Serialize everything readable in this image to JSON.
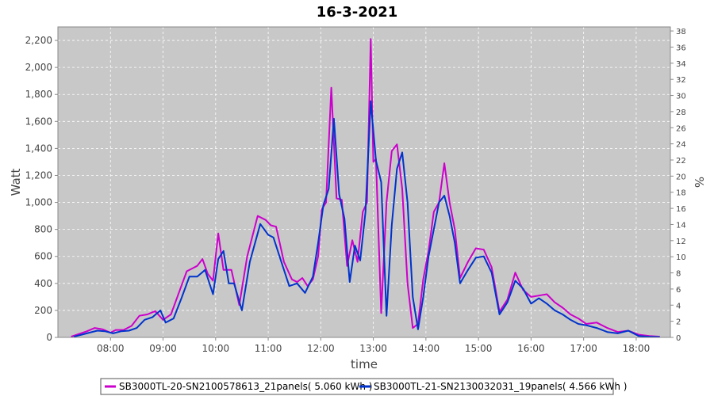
{
  "chart_data": {
    "type": "line",
    "title": "16-3-2021",
    "xlabel": "time",
    "ylabel": "Watt",
    "y2label": "%",
    "xlim": [
      7.0,
      18.65
    ],
    "ylim": [
      0,
      2300
    ],
    "y2lim": [
      0,
      38.5
    ],
    "x_ticks": [
      8,
      9,
      10,
      11,
      12,
      13,
      14,
      15,
      16,
      17,
      18
    ],
    "x_tick_labels": [
      "08:00",
      "09:00",
      "10:00",
      "11:00",
      "12:00",
      "13:00",
      "14:00",
      "15:00",
      "16:00",
      "17:00",
      "18:00"
    ],
    "y_ticks": [
      0,
      200,
      400,
      600,
      800,
      1000,
      1200,
      1400,
      1600,
      1800,
      2000,
      2200
    ],
    "y_tick_labels": [
      "0",
      "200",
      "400",
      "600",
      "800",
      "1,000",
      "1,200",
      "1,400",
      "1,600",
      "1,800",
      "2,000",
      "2,200"
    ],
    "y2_ticks": [
      0,
      2,
      4,
      6,
      8,
      10,
      12,
      14,
      16,
      18,
      20,
      22,
      24,
      26,
      28,
      30,
      32,
      34,
      36,
      38
    ],
    "y2_tick_labels": [
      "0",
      "2",
      "4",
      "6",
      "8",
      "10",
      "12",
      "14",
      "16",
      "18",
      "20",
      "22",
      "24",
      "26",
      "28",
      "30",
      "32",
      "34",
      "36",
      "38"
    ],
    "grid": true,
    "legend_position": "bottom",
    "series": [
      {
        "name": "SB3000TL-20-SN2100578613_21panels( 5.060 kWh )",
        "color": "#cc00cc",
        "x": [
          7.25,
          7.4,
          7.55,
          7.7,
          7.85,
          8.0,
          8.1,
          8.25,
          8.4,
          8.55,
          8.7,
          8.85,
          9.0,
          9.15,
          9.3,
          9.45,
          9.55,
          9.65,
          9.75,
          9.85,
          9.95,
          10.05,
          10.15,
          10.3,
          10.45,
          10.6,
          10.8,
          10.95,
          11.05,
          11.15,
          11.3,
          11.45,
          11.55,
          11.65,
          11.75,
          11.85,
          11.95,
          12.02,
          12.1,
          12.2,
          12.3,
          12.4,
          12.5,
          12.6,
          12.7,
          12.8,
          12.88,
          12.95,
          13.0,
          13.05,
          13.15,
          13.25,
          13.35,
          13.45,
          13.55,
          13.65,
          13.75,
          13.85,
          13.95,
          14.05,
          14.15,
          14.25,
          14.35,
          14.45,
          14.55,
          14.65,
          14.8,
          14.95,
          15.1,
          15.25,
          15.4,
          15.55,
          15.7,
          15.85,
          16.0,
          16.15,
          16.3,
          16.45,
          16.6,
          16.75,
          16.9,
          17.05,
          17.25,
          17.45,
          17.65,
          17.85,
          18.05,
          18.25,
          18.45
        ],
        "y": [
          5,
          25,
          45,
          70,
          60,
          35,
          55,
          55,
          85,
          160,
          170,
          195,
          130,
          170,
          330,
          490,
          510,
          530,
          580,
          470,
          420,
          770,
          500,
          500,
          240,
          600,
          900,
          870,
          830,
          820,
          560,
          430,
          410,
          440,
          380,
          430,
          600,
          950,
          1000,
          1850,
          1030,
          1020,
          530,
          720,
          560,
          930,
          1000,
          2210,
          1300,
          1320,
          180,
          1000,
          1380,
          1430,
          1100,
          400,
          70,
          100,
          430,
          640,
          930,
          1000,
          1290,
          1000,
          800,
          440,
          560,
          660,
          650,
          520,
          190,
          280,
          480,
          350,
          300,
          310,
          320,
          260,
          220,
          170,
          140,
          100,
          110,
          70,
          40,
          50,
          20,
          10,
          5
        ]
      },
      {
        "name": "SB3000TL-21-SN2130032031_19panels( 4.566 kWh )",
        "color": "#0033cc",
        "x": [
          7.3,
          7.45,
          7.6,
          7.75,
          7.9,
          8.05,
          8.2,
          8.35,
          8.5,
          8.65,
          8.8,
          8.95,
          9.05,
          9.2,
          9.35,
          9.5,
          9.65,
          9.8,
          9.95,
          10.05,
          10.15,
          10.25,
          10.35,
          10.5,
          10.65,
          10.85,
          11.0,
          11.1,
          11.25,
          11.4,
          11.55,
          11.7,
          11.85,
          11.95,
          12.05,
          12.15,
          12.25,
          12.35,
          12.45,
          12.55,
          12.65,
          12.75,
          12.85,
          12.95,
          13.05,
          13.15,
          13.25,
          13.35,
          13.45,
          13.55,
          13.65,
          13.75,
          13.85,
          13.95,
          14.05,
          14.15,
          14.25,
          14.35,
          14.45,
          14.55,
          14.65,
          14.8,
          14.95,
          15.1,
          15.25,
          15.4,
          15.55,
          15.7,
          15.85,
          16.0,
          16.15,
          16.3,
          16.45,
          16.6,
          16.75,
          16.9,
          17.05,
          17.25,
          17.45,
          17.65,
          17.85,
          18.05,
          18.25,
          18.45
        ],
        "y": [
          5,
          20,
          35,
          50,
          45,
          30,
          45,
          50,
          70,
          130,
          150,
          200,
          110,
          140,
          290,
          450,
          450,
          500,
          320,
          580,
          640,
          400,
          400,
          200,
          560,
          840,
          760,
          740,
          560,
          380,
          400,
          330,
          450,
          700,
          980,
          1100,
          1620,
          1060,
          880,
          410,
          680,
          570,
          930,
          1750,
          1310,
          1150,
          160,
          830,
          1250,
          1370,
          1000,
          300,
          60,
          300,
          600,
          800,
          1000,
          1050,
          900,
          700,
          400,
          500,
          590,
          600,
          480,
          170,
          260,
          420,
          360,
          250,
          290,
          250,
          200,
          170,
          130,
          100,
          90,
          70,
          40,
          30,
          50,
          10,
          5,
          3
        ]
      }
    ]
  }
}
